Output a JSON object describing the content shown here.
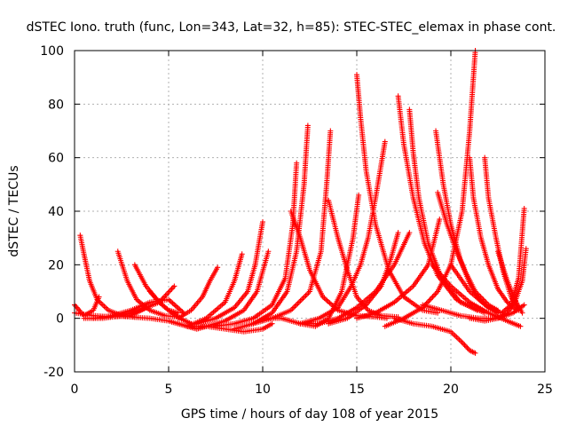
{
  "chart_data": {
    "type": "scatter",
    "title": "dSTEC Iono. truth (func, Lon=343, Lat=32, h=85): STEC-STEC_elemax in phase cont.",
    "xlabel": "GPS time / hours of day 108 of year 2015",
    "ylabel": "dSTEC  / TECUs",
    "xlim": [
      0,
      25
    ],
    "ylim": [
      -20,
      100
    ],
    "x_ticks": [
      "0",
      "5",
      "10",
      "15",
      "20",
      "25"
    ],
    "y_ticks": [
      "-20",
      "0",
      "20",
      "40",
      "60",
      "80",
      "100"
    ],
    "grid": true,
    "marker": "+",
    "color": "#ff0000",
    "series": [
      {
        "x": [
          0.0,
          0.5,
          1.0,
          1.3
        ],
        "y": [
          5,
          1,
          3,
          8
        ]
      },
      {
        "x": [
          0.0,
          1.0,
          2.0,
          3.0,
          3.8
        ],
        "y": [
          2,
          1,
          0.5,
          1,
          4
        ]
      },
      {
        "x": [
          0.3,
          0.5,
          0.8,
          1.2,
          1.8,
          2.5,
          3.2
        ],
        "y": [
          31,
          24,
          14,
          7,
          3,
          1,
          0.5
        ]
      },
      {
        "x": [
          0.5,
          1.5,
          2.5,
          3.5,
          4.5,
          5.3
        ],
        "y": [
          0,
          0,
          1,
          3,
          6,
          12
        ]
      },
      {
        "x": [
          2.3,
          2.8,
          3.3,
          4.0,
          4.8,
          5.5
        ],
        "y": [
          25,
          14,
          7,
          3,
          1,
          0.5
        ]
      },
      {
        "x": [
          3.2,
          3.8,
          4.5,
          5.0,
          5.5
        ],
        "y": [
          20,
          12,
          6,
          3,
          2
        ]
      },
      {
        "x": [
          1.0,
          2.0,
          3.0,
          4.0,
          5.0,
          5.8
        ],
        "y": [
          0,
          1,
          3,
          6,
          7,
          2
        ]
      },
      {
        "x": [
          4.0,
          4.5,
          5.0,
          5.6,
          6.2
        ],
        "y": [
          10,
          6,
          3,
          0,
          -2
        ]
      },
      {
        "x": [
          2.0,
          3.0,
          4.0,
          5.0,
          5.5,
          6.0,
          6.5,
          7.0
        ],
        "y": [
          1,
          0.5,
          0,
          -1,
          -2,
          -3,
          -4,
          -3
        ]
      },
      {
        "x": [
          5.5,
          6.2,
          6.8,
          7.2,
          7.6
        ],
        "y": [
          0,
          3,
          8,
          14,
          19
        ]
      },
      {
        "x": [
          6.0,
          7.0,
          8.0,
          8.5,
          8.9
        ],
        "y": [
          -3,
          0,
          6,
          14,
          24
        ]
      },
      {
        "x": [
          6.5,
          7.5,
          8.5,
          9.2,
          9.6,
          10.0
        ],
        "y": [
          -2,
          0,
          4,
          10,
          20,
          36
        ]
      },
      {
        "x": [
          7.0,
          8.0,
          9.0,
          9.7,
          10.3
        ],
        "y": [
          -3,
          -1,
          3,
          10,
          25
        ]
      },
      {
        "x": [
          7.5,
          8.5,
          9.5,
          10.5,
          11.2,
          11.6,
          11.8
        ],
        "y": [
          -3,
          -2,
          0,
          5,
          15,
          35,
          58
        ]
      },
      {
        "x": [
          6.0,
          7.0,
          8.0,
          9.0,
          10.0,
          10.5
        ],
        "y": [
          -3,
          -3,
          -4,
          -5,
          -4,
          -2
        ]
      },
      {
        "x": [
          8.5,
          9.5,
          10.5,
          11.3,
          11.8,
          12.2,
          12.4
        ],
        "y": [
          -4,
          -2,
          2,
          10,
          25,
          50,
          72
        ]
      },
      {
        "x": [
          9.5,
          10.5,
          11.5,
          12.5,
          13.1,
          13.4,
          13.6
        ],
        "y": [
          -2,
          0,
          3,
          10,
          25,
          50,
          70
        ]
      },
      {
        "x": [
          11.5,
          12.0,
          12.5,
          13.2,
          14.0,
          15.0,
          16.0,
          16.6
        ],
        "y": [
          40,
          30,
          18,
          8,
          3,
          1,
          0.5,
          0
        ]
      },
      {
        "x": [
          13.5,
          14.0,
          14.5,
          15.0,
          15.6,
          16.3,
          17.2
        ],
        "y": [
          44,
          30,
          18,
          8,
          3,
          1,
          0.5
        ]
      },
      {
        "x": [
          10.0,
          11.0,
          12.0,
          12.8,
          13.5,
          14.2,
          14.8,
          15.1
        ],
        "y": [
          0,
          0,
          -2,
          -3,
          0,
          10,
          30,
          46
        ]
      },
      {
        "x": [
          12.0,
          13.0,
          14.0,
          14.7,
          15.2,
          15.6,
          16.0,
          16.5
        ],
        "y": [
          -2,
          0,
          4,
          12,
          20,
          30,
          45,
          66
        ]
      },
      {
        "x": [
          15.0,
          15.2,
          15.5,
          16.0,
          16.7,
          17.5,
          18.5,
          19.3
        ],
        "y": [
          91,
          75,
          55,
          35,
          18,
          8,
          3,
          2
        ]
      },
      {
        "x": [
          13.5,
          14.5,
          15.5,
          16.3,
          16.8,
          17.2
        ],
        "y": [
          -2,
          0,
          5,
          12,
          22,
          32
        ]
      },
      {
        "x": [
          12.0,
          13.0,
          14.0,
          15.0,
          16.0,
          17.0,
          17.8
        ],
        "y": [
          -2,
          -2,
          0,
          4,
          10,
          20,
          32
        ]
      },
      {
        "x": [
          17.2,
          17.5,
          18.0,
          18.6,
          19.3,
          20.3,
          21.4
        ],
        "y": [
          83,
          65,
          45,
          28,
          16,
          7,
          3
        ]
      },
      {
        "x": [
          17.8,
          18.0,
          18.3,
          18.8,
          19.5,
          20.5,
          21.8
        ],
        "y": [
          78,
          62,
          45,
          28,
          15,
          6,
          2
        ]
      },
      {
        "x": [
          15.0,
          16.0,
          17.0,
          18.0,
          18.8,
          19.4
        ],
        "y": [
          0,
          2,
          6,
          12,
          20,
          37
        ]
      },
      {
        "x": [
          16.5,
          17.5,
          18.5,
          19.3,
          20.0,
          20.6,
          21.0,
          21.3
        ],
        "y": [
          -3,
          0,
          4,
          10,
          20,
          40,
          70,
          100
        ]
      },
      {
        "x": [
          17.0,
          18.0,
          19.0,
          20.0,
          20.6,
          21.0,
          21.3
        ],
        "y": [
          0,
          -2,
          -3,
          -5,
          -9,
          -12,
          -13
        ]
      },
      {
        "x": [
          19.2,
          19.6,
          20.0,
          20.5,
          21.0,
          21.5,
          22.0,
          22.5
        ],
        "y": [
          70,
          50,
          35,
          22,
          13,
          7,
          4,
          2
        ]
      },
      {
        "x": [
          19.3,
          19.8,
          20.3,
          20.8,
          21.3,
          22.0,
          22.5
        ],
        "y": [
          47,
          35,
          25,
          17,
          10,
          5,
          3
        ]
      },
      {
        "x": [
          21.0,
          21.2,
          21.6,
          22.0,
          22.5,
          23.0,
          23.5
        ],
        "y": [
          60,
          45,
          30,
          20,
          11,
          6,
          3
        ]
      },
      {
        "x": [
          21.8,
          22.0,
          22.4,
          22.8,
          23.2,
          23.6
        ],
        "y": [
          60,
          45,
          30,
          17,
          8,
          3
        ]
      },
      {
        "x": [
          22.5,
          23.0,
          23.4,
          23.8
        ],
        "y": [
          25,
          14,
          7,
          2
        ]
      },
      {
        "x": [
          20.0,
          21.0,
          22.0,
          22.7,
          23.2,
          23.6,
          23.9
        ],
        "y": [
          20,
          10,
          4,
          2,
          5,
          15,
          41
        ]
      },
      {
        "x": [
          21.0,
          21.8,
          22.5,
          23.0,
          23.4,
          23.8,
          24.0
        ],
        "y": [
          0,
          -1,
          0,
          2,
          6,
          14,
          26
        ]
      },
      {
        "x": [
          18.5,
          19.5,
          20.5,
          21.5,
          22.5,
          23.3,
          23.9
        ],
        "y": [
          5,
          3,
          1,
          0,
          0,
          2,
          5
        ]
      },
      {
        "x": [
          19.0,
          20.0,
          21.0,
          22.0,
          23.0,
          23.7
        ],
        "y": [
          20,
          12,
          6,
          2,
          -1,
          -3
        ]
      }
    ]
  }
}
